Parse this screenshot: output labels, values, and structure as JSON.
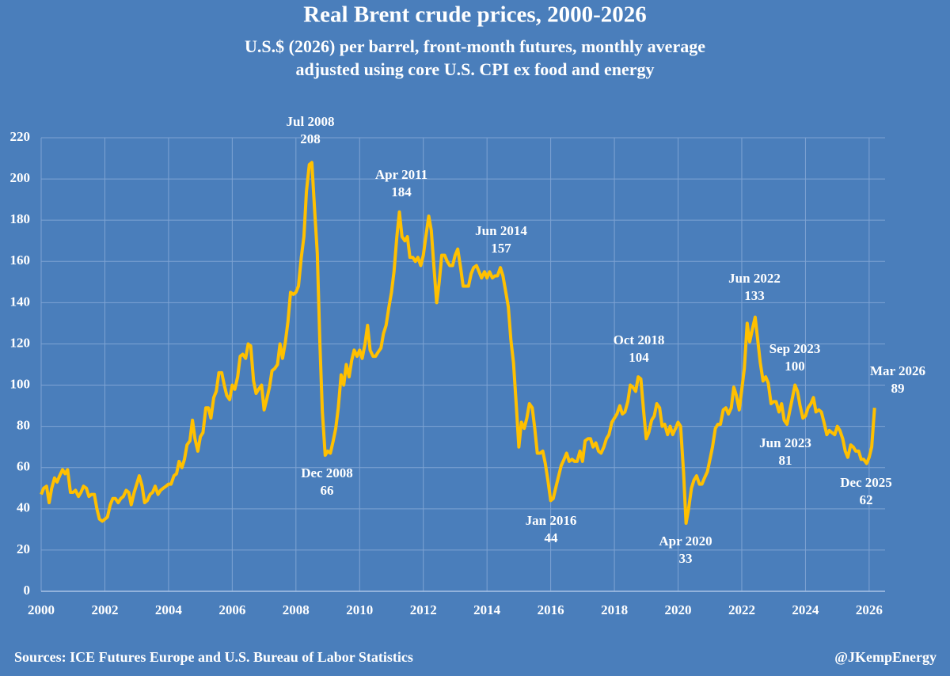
{
  "chart_data": {
    "type": "line",
    "title": "Real Brent crude prices, 2000-2026",
    "subtitle": "U.S.$ (2026) per barrel, front-month futures, monthly average",
    "subtitle2": "adjusted using core U.S. CPI ex food and energy",
    "source": "Sources: ICE Futures Europe and U.S. Bureau of Labor Statistics",
    "credit": "@JKempEnergy",
    "xlim": [
      2000,
      2026.5
    ],
    "xticks": [
      2000,
      2002,
      2004,
      2006,
      2008,
      2010,
      2012,
      2014,
      2016,
      2018,
      2020,
      2022,
      2024,
      2026
    ],
    "ylim": [
      0,
      220
    ],
    "yticks": [
      0,
      20,
      40,
      60,
      80,
      100,
      120,
      140,
      160,
      180,
      200,
      220
    ],
    "grid": true,
    "grid_color": "#7ea3d3",
    "series": [
      {
        "name": "Real Brent",
        "color": "#ffc000",
        "x": [
          2000,
          2000.08,
          2000.17,
          2000.25,
          2000.33,
          2000.42,
          2000.5,
          2000.58,
          2000.67,
          2000.75,
          2000.83,
          2000.92,
          2001,
          2001.08,
          2001.17,
          2001.25,
          2001.33,
          2001.42,
          2001.5,
          2001.58,
          2001.67,
          2001.75,
          2001.83,
          2001.92,
          2002,
          2002.08,
          2002.17,
          2002.25,
          2002.33,
          2002.42,
          2002.5,
          2002.58,
          2002.67,
          2002.75,
          2002.83,
          2002.92,
          2003,
          2003.08,
          2003.17,
          2003.25,
          2003.33,
          2003.42,
          2003.5,
          2003.58,
          2003.67,
          2003.75,
          2003.83,
          2003.92,
          2004,
          2004.08,
          2004.17,
          2004.25,
          2004.33,
          2004.42,
          2004.5,
          2004.58,
          2004.67,
          2004.75,
          2004.83,
          2004.92,
          2005,
          2005.08,
          2005.17,
          2005.25,
          2005.33,
          2005.42,
          2005.5,
          2005.58,
          2005.67,
          2005.75,
          2005.83,
          2005.92,
          2006,
          2006.08,
          2006.17,
          2006.25,
          2006.33,
          2006.42,
          2006.5,
          2006.58,
          2006.67,
          2006.75,
          2006.83,
          2006.92,
          2007,
          2007.08,
          2007.17,
          2007.25,
          2007.33,
          2007.42,
          2007.5,
          2007.58,
          2007.67,
          2007.75,
          2007.83,
          2007.92,
          2008,
          2008.08,
          2008.17,
          2008.25,
          2008.33,
          2008.42,
          2008.5,
          2008.58,
          2008.67,
          2008.75,
          2008.83,
          2008.92,
          2009,
          2009.08,
          2009.17,
          2009.25,
          2009.33,
          2009.42,
          2009.5,
          2009.58,
          2009.67,
          2009.75,
          2009.83,
          2009.92,
          2010,
          2010.08,
          2010.17,
          2010.25,
          2010.33,
          2010.42,
          2010.5,
          2010.58,
          2010.67,
          2010.75,
          2010.83,
          2010.92,
          2011,
          2011.08,
          2011.17,
          2011.25,
          2011.33,
          2011.42,
          2011.5,
          2011.58,
          2011.67,
          2011.75,
          2011.83,
          2011.92,
          2012,
          2012.08,
          2012.17,
          2012.25,
          2012.33,
          2012.42,
          2012.5,
          2012.58,
          2012.67,
          2012.75,
          2012.83,
          2012.92,
          2013,
          2013.08,
          2013.17,
          2013.25,
          2013.33,
          2013.42,
          2013.5,
          2013.58,
          2013.67,
          2013.75,
          2013.83,
          2013.92,
          2014,
          2014.08,
          2014.17,
          2014.25,
          2014.33,
          2014.42,
          2014.5,
          2014.58,
          2014.67,
          2014.75,
          2014.83,
          2014.92,
          2015,
          2015.08,
          2015.17,
          2015.25,
          2015.33,
          2015.42,
          2015.5,
          2015.58,
          2015.67,
          2015.75,
          2015.83,
          2015.92,
          2016,
          2016.08,
          2016.17,
          2016.25,
          2016.33,
          2016.42,
          2016.5,
          2016.58,
          2016.67,
          2016.75,
          2016.83,
          2016.92,
          2017,
          2017.08,
          2017.17,
          2017.25,
          2017.33,
          2017.42,
          2017.5,
          2017.58,
          2017.67,
          2017.75,
          2017.83,
          2017.92,
          2018,
          2018.08,
          2018.17,
          2018.25,
          2018.33,
          2018.42,
          2018.5,
          2018.58,
          2018.67,
          2018.75,
          2018.83,
          2018.92,
          2019,
          2019.08,
          2019.17,
          2019.25,
          2019.33,
          2019.42,
          2019.5,
          2019.58,
          2019.67,
          2019.75,
          2019.83,
          2019.92,
          2020,
          2020.08,
          2020.17,
          2020.25,
          2020.33,
          2020.42,
          2020.5,
          2020.58,
          2020.67,
          2020.75,
          2020.83,
          2020.92,
          2021,
          2021.08,
          2021.17,
          2021.25,
          2021.33,
          2021.42,
          2021.5,
          2021.58,
          2021.67,
          2021.75,
          2021.83,
          2021.92,
          2022,
          2022.08,
          2022.17,
          2022.25,
          2022.33,
          2022.42,
          2022.5,
          2022.58,
          2022.67,
          2022.75,
          2022.83,
          2022.92,
          2023,
          2023.08,
          2023.17,
          2023.25,
          2023.33,
          2023.42,
          2023.5,
          2023.58,
          2023.67,
          2023.75,
          2023.83,
          2023.92,
          2024,
          2024.08,
          2024.17,
          2024.25,
          2024.33,
          2024.42,
          2024.5,
          2024.58,
          2024.67,
          2024.75,
          2024.83,
          2024.92,
          2025,
          2025.08,
          2025.17,
          2025.25,
          2025.33,
          2025.42,
          2025.5,
          2025.58,
          2025.67,
          2025.75,
          2025.83,
          2025.92,
          2026,
          2026.08,
          2026.17
        ],
        "values": [
          47,
          50,
          51,
          43,
          50,
          55,
          53,
          56,
          59,
          57,
          59,
          48,
          48,
          49,
          46,
          48,
          51,
          50,
          46,
          47,
          47,
          40,
          35,
          34,
          35,
          36,
          42,
          45,
          45,
          43,
          45,
          46,
          49,
          48,
          42,
          48,
          52,
          56,
          51,
          43,
          44,
          47,
          48,
          51,
          47,
          49,
          50,
          51,
          52,
          52,
          56,
          57,
          63,
          60,
          64,
          71,
          73,
          83,
          74,
          68,
          75,
          77,
          89,
          89,
          84,
          94,
          97,
          106,
          106,
          100,
          95,
          93,
          100,
          98,
          104,
          114,
          115,
          113,
          120,
          119,
          102,
          96,
          98,
          100,
          88,
          93,
          99,
          107,
          108,
          110,
          120,
          113,
          121,
          131,
          145,
          144,
          145,
          148,
          162,
          172,
          194,
          207,
          208,
          187,
          164,
          121,
          87,
          66,
          68,
          67,
          73,
          79,
          89,
          105,
          100,
          110,
          104,
          112,
          117,
          114,
          117,
          113,
          120,
          129,
          117,
          114,
          114,
          116,
          118,
          125,
          129,
          138,
          145,
          155,
          172,
          184,
          172,
          170,
          172,
          162,
          162,
          160,
          162,
          158,
          163,
          172,
          182,
          175,
          158,
          140,
          150,
          163,
          163,
          160,
          158,
          158,
          163,
          166,
          157,
          148,
          148,
          148,
          154,
          157,
          158,
          155,
          152,
          155,
          152,
          155,
          152,
          153,
          153,
          157,
          153,
          146,
          138,
          122,
          111,
          90,
          70,
          82,
          79,
          84,
          91,
          89,
          79,
          67,
          67,
          68,
          62,
          53,
          44,
          45,
          51,
          56,
          61,
          64,
          67,
          63,
          64,
          63,
          63,
          68,
          63,
          73,
          74,
          74,
          70,
          72,
          68,
          67,
          70,
          74,
          76,
          82,
          84,
          86,
          90,
          86,
          87,
          92,
          100,
          99,
          97,
          104,
          103,
          87,
          74,
          77,
          83,
          85,
          91,
          89,
          80,
          81,
          76,
          80,
          76,
          79,
          82,
          80,
          58,
          33,
          40,
          50,
          54,
          56,
          52,
          52,
          55,
          58,
          64,
          70,
          79,
          81,
          81,
          88,
          89,
          86,
          89,
          99,
          95,
          88,
          98,
          108,
          130,
          121,
          127,
          133,
          122,
          111,
          102,
          104,
          101,
          91,
          92,
          92,
          87,
          91,
          83,
          81,
          87,
          93,
          100,
          97,
          90,
          84,
          85,
          89,
          91,
          94,
          87,
          88,
          87,
          82,
          76,
          78,
          77,
          76,
          80,
          78,
          74,
          68,
          65,
          71,
          70,
          68,
          68,
          64,
          64,
          62,
          65,
          70,
          89
        ]
      }
    ],
    "annotations": [
      {
        "label": "Jul 2008",
        "value": 208
      },
      {
        "label": "Dec 2008",
        "value": 66
      },
      {
        "label": "Apr 2011",
        "value": 184
      },
      {
        "label": "Jun 2014",
        "value": 157
      },
      {
        "label": "Jan 2016",
        "value": 44
      },
      {
        "label": "Oct 2018",
        "value": 104
      },
      {
        "label": "Apr 2020",
        "value": 33
      },
      {
        "label": "Jun 2022",
        "value": 133
      },
      {
        "label": "Sep 2023",
        "value": 100
      },
      {
        "label": "Jun 2023",
        "value": 81
      },
      {
        "label": "Dec 2025",
        "value": 62
      },
      {
        "label": "Mar 2026",
        "value": 89
      }
    ]
  }
}
